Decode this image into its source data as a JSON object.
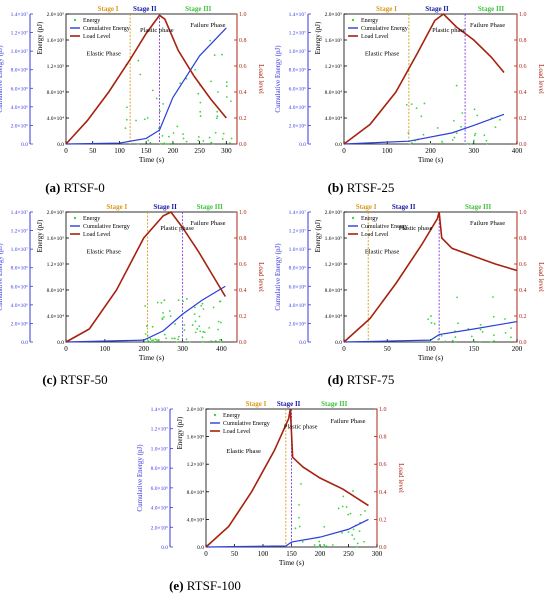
{
  "figure_title": "",
  "colors": {
    "energy": "#3fd43f",
    "cumulative": "#2a3fd8",
    "load": "#a6220f",
    "left_axis": "#3a3adf",
    "right_axis": "#b02418",
    "stage1_line": "#d89a1a",
    "stage2_line": "#7a3fe0",
    "stage1_text": "#d89a1a",
    "stage2_text": "#1a1aa8",
    "stage3_text": "#3fc43f"
  },
  "panels": [
    {
      "id": "a",
      "caption_label": "(a)",
      "caption_text": "RTSF-0",
      "chart_data": {
        "type": "line",
        "xlabel": "Time (s)",
        "ylabel_energy": "Energy (pJ)",
        "ylabel_cumulative": "Cumulative Energy (pJ)",
        "ylabel_load": "Load level",
        "xlim": [
          0,
          320
        ],
        "xticks": [
          "0",
          "50",
          "100",
          "150",
          "200",
          "250",
          "300"
        ],
        "xtick_values": [
          0,
          50,
          100,
          150,
          200,
          250,
          300
        ],
        "energy_ticks": [
          "0.0",
          "4.0×10⁴",
          "8.0×10⁴",
          "1.2×10⁵",
          "1.6×10⁵",
          "2.0×10⁵"
        ],
        "cumulative_ticks": [
          "0.0",
          "2.0×10⁶",
          "4.0×10⁶",
          "6.0×10⁶",
          "8.0×10⁶",
          "1.0×10⁷",
          "1.2×10⁷",
          "1.4×10⁷"
        ],
        "load_ticks": [
          "0.0",
          "0.2",
          "0.4",
          "0.6",
          "0.8",
          "1.0"
        ],
        "energy_max": 200000,
        "cumulative_max": 14000000,
        "legend": [
          "Energy",
          "Cumulative Energy",
          "Load Level"
        ],
        "stages": [
          "Stage I",
          "Stage II",
          "Stage III"
        ],
        "stage_lines": [
          120,
          175
        ],
        "phases": [
          "Elastic Phase",
          "Plastic phase",
          "Failure Phase"
        ],
        "load_series": [
          [
            0,
            0
          ],
          [
            40,
            0.18
          ],
          [
            80,
            0.4
          ],
          [
            120,
            0.65
          ],
          [
            150,
            0.85
          ],
          [
            175,
            0.99
          ],
          [
            185,
            0.96
          ],
          [
            210,
            0.72
          ],
          [
            240,
            0.52
          ],
          [
            270,
            0.35
          ],
          [
            300,
            0.2
          ]
        ],
        "cumulative_series": [
          [
            0,
            0
          ],
          [
            100,
            100000
          ],
          [
            150,
            600000
          ],
          [
            175,
            1500000
          ],
          [
            200,
            5000000
          ],
          [
            250,
            9500000
          ],
          [
            300,
            12500000
          ]
        ],
        "energy_scatter": {
          "start": 110,
          "end": 310,
          "count": 60,
          "max": 160000,
          "seed": 1
        }
      }
    },
    {
      "id": "b",
      "caption_label": "(b)",
      "caption_text": "RTSF-25",
      "chart_data": {
        "type": "line",
        "xlabel": "Time (s)",
        "ylabel_energy": "Energy (pJ)",
        "ylabel_cumulative": "Cumulative Energy (pJ)",
        "ylabel_load": "Load level",
        "xlim": [
          0,
          400
        ],
        "xticks": [
          "0",
          "100",
          "200",
          "300",
          "400"
        ],
        "xtick_values": [
          0,
          100,
          200,
          300,
          400
        ],
        "energy_ticks": [
          "0.0",
          "4.0×10⁴",
          "8.0×10⁴",
          "1.2×10⁵",
          "1.6×10⁵",
          "2.0×10⁵"
        ],
        "cumulative_ticks": [
          "0.0",
          "2.0×10⁶",
          "4.0×10⁶",
          "6.0×10⁶",
          "8.0×10⁶",
          "1.0×10⁷",
          "1.2×10⁷",
          "1.4×10⁷"
        ],
        "load_ticks": [
          "0.0",
          "0.2",
          "0.4",
          "0.6",
          "0.8",
          "1.0"
        ],
        "energy_max": 200000,
        "cumulative_max": 14000000,
        "legend": [
          "Energy",
          "Cumulative Energy",
          "Load Level"
        ],
        "stages": [
          "Stage I",
          "Stage II",
          "Stage III"
        ],
        "stage_lines": [
          150,
          280
        ],
        "phases": [
          "Elastic Phase",
          "Plastic phase",
          "Failure Phase"
        ],
        "load_series": [
          [
            0,
            0
          ],
          [
            60,
            0.15
          ],
          [
            120,
            0.4
          ],
          [
            170,
            0.7
          ],
          [
            210,
            0.95
          ],
          [
            230,
            1.0
          ],
          [
            260,
            0.9
          ],
          [
            300,
            0.8
          ],
          [
            340,
            0.67
          ],
          [
            370,
            0.55
          ]
        ],
        "cumulative_series": [
          [
            0,
            0
          ],
          [
            150,
            300000
          ],
          [
            250,
            1200000
          ],
          [
            300,
            2000000
          ],
          [
            370,
            3200000
          ]
        ],
        "energy_scatter": {
          "start": 140,
          "end": 370,
          "count": 35,
          "max": 90000,
          "seed": 2
        }
      }
    },
    {
      "id": "c",
      "caption_label": "(c)",
      "caption_text": "RTSF-50",
      "chart_data": {
        "type": "line",
        "xlabel": "Time (s)",
        "ylabel_energy": "Energy (pJ)",
        "ylabel_cumulative": "Cumulative Energy (pJ)",
        "ylabel_load": "Load level",
        "xlim": [
          0,
          440
        ],
        "xticks": [
          "0",
          "100",
          "200",
          "300",
          "400"
        ],
        "xtick_values": [
          0,
          100,
          200,
          300,
          400
        ],
        "energy_ticks": [
          "0.0",
          "4.0×10⁴",
          "8.0×10⁴",
          "1.2×10⁵",
          "1.6×10⁵",
          "2.0×10⁵"
        ],
        "cumulative_ticks": [
          "0.0",
          "2.0×10⁶",
          "4.0×10⁶",
          "6.0×10⁶",
          "8.0×10⁶",
          "1.0×10⁷",
          "1.2×10⁷",
          "1.4×10⁷"
        ],
        "load_ticks": [
          "0.0",
          "0.2",
          "0.4",
          "0.6",
          "0.8",
          "1.0"
        ],
        "energy_max": 200000,
        "cumulative_max": 14000000,
        "legend": [
          "Energy",
          "Cumulative Energy",
          "Load Level"
        ],
        "stages": [
          "Stage I",
          "Stage II",
          "Stage III"
        ],
        "stage_lines": [
          210,
          300
        ],
        "phases": [
          "Elastic Phase",
          "Plastic phase",
          "Failure Phase"
        ],
        "load_series": [
          [
            0,
            0
          ],
          [
            60,
            0.1
          ],
          [
            130,
            0.4
          ],
          [
            200,
            0.8
          ],
          [
            250,
            0.97
          ],
          [
            270,
            1.0
          ],
          [
            300,
            0.88
          ],
          [
            340,
            0.7
          ],
          [
            380,
            0.5
          ],
          [
            410,
            0.35
          ]
        ],
        "cumulative_series": [
          [
            0,
            0
          ],
          [
            200,
            200000
          ],
          [
            250,
            1200000
          ],
          [
            300,
            3000000
          ],
          [
            350,
            4500000
          ],
          [
            410,
            6000000
          ]
        ],
        "energy_scatter": {
          "start": 200,
          "end": 410,
          "count": 70,
          "max": 70000,
          "seed": 3
        }
      }
    },
    {
      "id": "d",
      "caption_label": "(d)",
      "caption_text": "RTSF-75",
      "chart_data": {
        "type": "line",
        "xlabel": "Time (s)",
        "ylabel_energy": "Energy (pJ)",
        "ylabel_cumulative": "Cumulative Energy (pJ)",
        "ylabel_load": "Load level",
        "xlim": [
          0,
          200
        ],
        "xticks": [
          "0",
          "50",
          "100",
          "150",
          "200"
        ],
        "xtick_values": [
          0,
          50,
          100,
          150,
          200
        ],
        "energy_ticks": [
          "0.0",
          "4.0×10⁴",
          "8.0×10⁴",
          "1.2×10⁵",
          "1.6×10⁵",
          "2.0×10⁵"
        ],
        "cumulative_ticks": [
          "0.0",
          "2.0×10⁶",
          "4.0×10⁶",
          "6.0×10⁶",
          "8.0×10⁶",
          "1.0×10⁷",
          "1.2×10⁷",
          "1.4×10⁷"
        ],
        "load_ticks": [
          "0.0",
          "0.2",
          "0.4",
          "0.6",
          "0.8",
          "1.0"
        ],
        "energy_max": 200000,
        "cumulative_max": 14000000,
        "legend": [
          "Energy",
          "Cumulative Energy",
          "Load Level"
        ],
        "stages": [
          "Stage I",
          "Stage II",
          "Stage III"
        ],
        "stage_lines": [
          28,
          110
        ],
        "phases": [
          "Elastic Phase",
          "Plastic phase",
          "Failure Phase"
        ],
        "load_series": [
          [
            0,
            0
          ],
          [
            30,
            0.18
          ],
          [
            60,
            0.45
          ],
          [
            90,
            0.75
          ],
          [
            108,
            0.95
          ],
          [
            110,
            1.0
          ],
          [
            113,
            0.8
          ],
          [
            125,
            0.72
          ],
          [
            150,
            0.66
          ],
          [
            175,
            0.6
          ],
          [
            200,
            0.55
          ]
        ],
        "cumulative_series": [
          [
            0,
            0
          ],
          [
            100,
            200000
          ],
          [
            110,
            800000
          ],
          [
            150,
            1400000
          ],
          [
            200,
            2200000
          ]
        ],
        "energy_scatter": {
          "start": 95,
          "end": 200,
          "count": 30,
          "max": 80000,
          "seed": 4
        }
      }
    },
    {
      "id": "e",
      "caption_label": "(e)",
      "caption_text": "RTSF-100",
      "chart_data": {
        "type": "line",
        "xlabel": "Time (s)",
        "ylabel_energy": "Energy (pJ)",
        "ylabel_cumulative": "Cumulative Energy (pJ)",
        "ylabel_load": "Load level",
        "xlim": [
          0,
          300
        ],
        "xticks": [
          "0",
          "50",
          "100",
          "150",
          "200",
          "250",
          "300"
        ],
        "xtick_values": [
          0,
          50,
          100,
          150,
          200,
          250,
          300
        ],
        "energy_ticks": [
          "0.0",
          "4.0×10⁴",
          "8.0×10⁴",
          "1.2×10⁵",
          "1.6×10⁵",
          "2.0×10⁵"
        ],
        "cumulative_ticks": [
          "0.0",
          "2.0×10⁶",
          "4.0×10⁶",
          "6.0×10⁶",
          "8.0×10⁶",
          "1.0×10⁷",
          "1.2×10⁷",
          "1.4×10⁷"
        ],
        "load_ticks": [
          "0.0",
          "0.2",
          "0.4",
          "0.6",
          "0.8",
          "1.0"
        ],
        "energy_max": 200000,
        "cumulative_max": 14000000,
        "legend": [
          "Energy",
          "Cumulative Energy",
          "Load Level"
        ],
        "stages": [
          "Stage I",
          "Stage II",
          "Stage III"
        ],
        "stage_lines": [
          140,
          150
        ],
        "phases": [
          "Elastic Phase",
          "Plastic phase",
          "Failure Phase"
        ],
        "load_series": [
          [
            0,
            0
          ],
          [
            40,
            0.15
          ],
          [
            80,
            0.4
          ],
          [
            120,
            0.7
          ],
          [
            145,
            0.93
          ],
          [
            148,
            1.0
          ],
          [
            152,
            0.65
          ],
          [
            170,
            0.58
          ],
          [
            200,
            0.5
          ],
          [
            240,
            0.42
          ],
          [
            285,
            0.3
          ]
        ],
        "cumulative_series": [
          [
            0,
            0
          ],
          [
            140,
            100000
          ],
          [
            150,
            500000
          ],
          [
            200,
            1000000
          ],
          [
            250,
            1800000
          ],
          [
            285,
            2800000
          ]
        ],
        "energy_scatter": {
          "start": 145,
          "end": 285,
          "count": 35,
          "max": 95000,
          "seed": 5
        }
      }
    }
  ]
}
